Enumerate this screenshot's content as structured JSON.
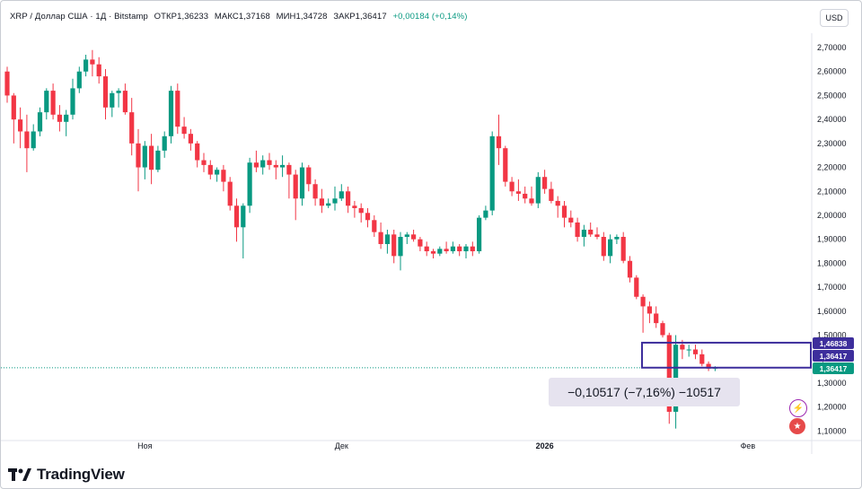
{
  "header": {
    "symbol": "XRP / Доллар США · 1Д · Bitstamp",
    "open": "ОТКР1,36233",
    "high": "МАКС1,37168",
    "low": "МИН1,34728",
    "close": "ЗАКР1,36417",
    "change": "+0,00184 (+0,14%)"
  },
  "toolbar": {
    "currency": "USD"
  },
  "measure": {
    "text": "−0,10517 (−7,16%) −10517"
  },
  "price_tags": {
    "top": "1,46838",
    "mid": "1,36417",
    "last": "1,36417"
  },
  "brand": {
    "name": "TradingView"
  },
  "colors": {
    "up": "#089981",
    "down": "#f23645",
    "accent": "#3d2e9c"
  },
  "icons": [
    "lightning-icon",
    "us-flag-icon"
  ],
  "chart_data": {
    "type": "candlestick",
    "y_ticks": [
      "2,70000",
      "2,60000",
      "2,50000",
      "2,40000",
      "2,30000",
      "2,20000",
      "2,10000",
      "2,00000",
      "1,90000",
      "1,80000",
      "1,70000",
      "1,60000",
      "1,50000",
      "1,40000",
      "1,30000",
      "1,20000",
      "1,10000"
    ],
    "x_labels": [
      {
        "label": "Ноя",
        "index": 21
      },
      {
        "label": "Дек",
        "index": 51
      },
      {
        "label": "2026",
        "index": 82
      },
      {
        "label": "Фев",
        "index": 113
      }
    ],
    "ylim": [
      1.06,
      2.76
    ],
    "grid": false,
    "candles": [
      [
        2.6,
        2.62,
        2.47,
        2.5
      ],
      [
        2.5,
        2.51,
        2.3,
        2.4
      ],
      [
        2.4,
        2.45,
        2.28,
        2.35
      ],
      [
        2.35,
        2.42,
        2.18,
        2.28
      ],
      [
        2.28,
        2.38,
        2.27,
        2.35
      ],
      [
        2.35,
        2.45,
        2.33,
        2.43
      ],
      [
        2.43,
        2.53,
        2.4,
        2.52
      ],
      [
        2.52,
        2.55,
        2.4,
        2.42
      ],
      [
        2.42,
        2.46,
        2.35,
        2.39
      ],
      [
        2.39,
        2.44,
        2.33,
        2.42
      ],
      [
        2.42,
        2.57,
        2.4,
        2.53
      ],
      [
        2.53,
        2.62,
        2.51,
        2.6
      ],
      [
        2.6,
        2.67,
        2.58,
        2.65
      ],
      [
        2.65,
        2.69,
        2.58,
        2.63
      ],
      [
        2.63,
        2.66,
        2.55,
        2.58
      ],
      [
        2.58,
        2.61,
        2.4,
        2.45
      ],
      [
        2.45,
        2.52,
        2.41,
        2.51
      ],
      [
        2.51,
        2.53,
        2.45,
        2.52
      ],
      [
        2.52,
        2.55,
        2.42,
        2.43
      ],
      [
        2.43,
        2.49,
        2.25,
        2.3
      ],
      [
        2.3,
        2.36,
        2.1,
        2.2
      ],
      [
        2.2,
        2.31,
        2.15,
        2.29
      ],
      [
        2.29,
        2.34,
        2.13,
        2.19
      ],
      [
        2.19,
        2.29,
        2.18,
        2.27
      ],
      [
        2.27,
        2.35,
        2.24,
        2.33
      ],
      [
        2.33,
        2.54,
        2.3,
        2.52
      ],
      [
        2.52,
        2.55,
        2.34,
        2.37
      ],
      [
        2.37,
        2.41,
        2.32,
        2.34
      ],
      [
        2.34,
        2.36,
        2.27,
        2.3
      ],
      [
        2.3,
        2.31,
        2.2,
        2.23
      ],
      [
        2.23,
        2.26,
        2.18,
        2.21
      ],
      [
        2.21,
        2.23,
        2.15,
        2.17
      ],
      [
        2.17,
        2.2,
        2.14,
        2.19
      ],
      [
        2.19,
        2.21,
        2.1,
        2.14
      ],
      [
        2.14,
        2.16,
        2.02,
        2.04
      ],
      [
        2.04,
        2.07,
        1.89,
        1.95
      ],
      [
        1.95,
        2.05,
        1.82,
        2.04
      ],
      [
        2.04,
        2.24,
        2.01,
        2.22
      ],
      [
        2.22,
        2.27,
        2.18,
        2.2
      ],
      [
        2.2,
        2.25,
        2.17,
        2.23
      ],
      [
        2.23,
        2.26,
        2.19,
        2.21
      ],
      [
        2.21,
        2.23,
        2.15,
        2.2
      ],
      [
        2.2,
        2.25,
        2.16,
        2.21
      ],
      [
        2.21,
        2.22,
        2.07,
        2.17
      ],
      [
        2.17,
        2.19,
        1.98,
        2.07
      ],
      [
        2.07,
        2.22,
        2.04,
        2.2
      ],
      [
        2.2,
        2.21,
        2.1,
        2.13
      ],
      [
        2.13,
        2.15,
        2.04,
        2.07
      ],
      [
        2.07,
        2.11,
        2.01,
        2.04
      ],
      [
        2.04,
        2.07,
        2.03,
        2.05
      ],
      [
        2.05,
        2.12,
        2.02,
        2.07
      ],
      [
        2.07,
        2.13,
        2.06,
        2.1
      ],
      [
        2.1,
        2.12,
        2.01,
        2.04
      ],
      [
        2.04,
        2.06,
        1.99,
        2.03
      ],
      [
        2.03,
        2.05,
        1.97,
        2.01
      ],
      [
        2.01,
        2.03,
        1.95,
        1.98
      ],
      [
        1.98,
        2.0,
        1.91,
        1.93
      ],
      [
        1.93,
        1.97,
        1.86,
        1.88
      ],
      [
        1.88,
        1.94,
        1.84,
        1.92
      ],
      [
        1.92,
        1.94,
        1.8,
        1.83
      ],
      [
        1.83,
        1.93,
        1.77,
        1.91
      ],
      [
        1.91,
        1.93,
        1.88,
        1.92
      ],
      [
        1.92,
        1.94,
        1.89,
        1.9
      ],
      [
        1.9,
        1.91,
        1.85,
        1.87
      ],
      [
        1.87,
        1.89,
        1.83,
        1.85
      ],
      [
        1.85,
        1.86,
        1.82,
        1.84
      ],
      [
        1.84,
        1.87,
        1.83,
        1.86
      ],
      [
        1.86,
        1.89,
        1.84,
        1.85
      ],
      [
        1.85,
        1.89,
        1.84,
        1.87
      ],
      [
        1.87,
        1.88,
        1.83,
        1.85
      ],
      [
        1.85,
        1.88,
        1.82,
        1.87
      ],
      [
        1.87,
        1.89,
        1.83,
        1.85
      ],
      [
        1.85,
        2.0,
        1.84,
        1.99
      ],
      [
        1.99,
        2.04,
        1.98,
        2.02
      ],
      [
        2.02,
        2.35,
        2.0,
        2.33
      ],
      [
        2.33,
        2.42,
        2.21,
        2.28
      ],
      [
        2.28,
        2.29,
        2.12,
        2.14
      ],
      [
        2.14,
        2.16,
        2.08,
        2.1
      ],
      [
        2.1,
        2.15,
        2.06,
        2.09
      ],
      [
        2.09,
        2.12,
        2.05,
        2.07
      ],
      [
        2.07,
        2.12,
        2.04,
        2.05
      ],
      [
        2.05,
        2.18,
        2.03,
        2.16
      ],
      [
        2.16,
        2.19,
        2.09,
        2.11
      ],
      [
        2.11,
        2.14,
        2.05,
        2.06
      ],
      [
        2.06,
        2.08,
        1.99,
        2.04
      ],
      [
        2.04,
        2.06,
        1.95,
        1.99
      ],
      [
        1.99,
        2.02,
        1.95,
        1.97
      ],
      [
        1.97,
        1.99,
        1.89,
        1.91
      ],
      [
        1.91,
        1.96,
        1.87,
        1.94
      ],
      [
        1.94,
        1.97,
        1.91,
        1.92
      ],
      [
        1.92,
        1.95,
        1.9,
        1.91
      ],
      [
        1.91,
        1.93,
        1.81,
        1.83
      ],
      [
        1.83,
        1.92,
        1.8,
        1.9
      ],
      [
        1.9,
        1.92,
        1.88,
        1.91
      ],
      [
        1.91,
        1.93,
        1.8,
        1.81
      ],
      [
        1.81,
        1.83,
        1.72,
        1.74
      ],
      [
        1.74,
        1.75,
        1.65,
        1.66
      ],
      [
        1.66,
        1.67,
        1.51,
        1.62
      ],
      [
        1.62,
        1.64,
        1.55,
        1.59
      ],
      [
        1.59,
        1.62,
        1.53,
        1.55
      ],
      [
        1.55,
        1.56,
        1.49,
        1.5
      ],
      [
        1.5,
        1.51,
        1.13,
        1.18
      ],
      [
        1.18,
        1.5,
        1.11,
        1.46
      ],
      [
        1.46,
        1.48,
        1.4,
        1.44
      ],
      [
        1.44,
        1.46,
        1.41,
        1.44
      ],
      [
        1.44,
        1.46,
        1.4,
        1.42
      ],
      [
        1.42,
        1.44,
        1.37,
        1.38
      ],
      [
        1.38,
        1.39,
        1.35,
        1.36
      ],
      [
        1.36,
        1.37,
        1.35,
        1.364
      ]
    ]
  }
}
